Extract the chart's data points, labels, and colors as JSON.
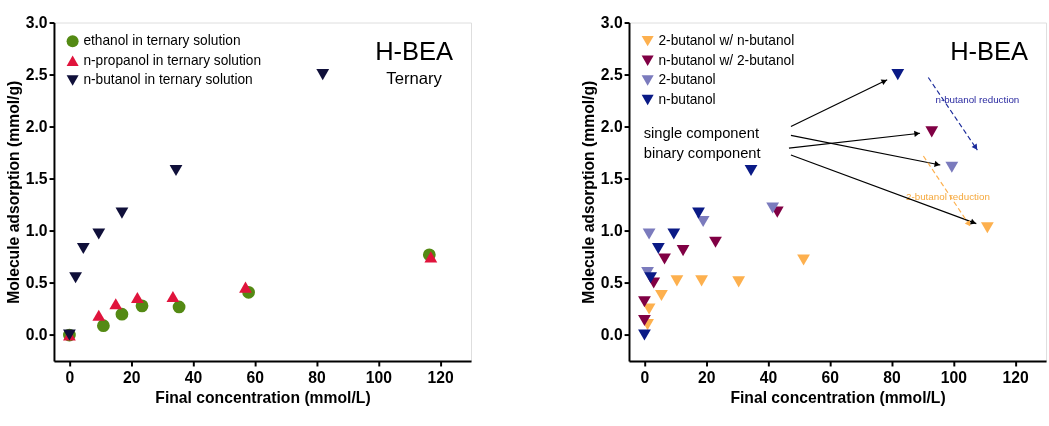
{
  "chart_data": [
    {
      "type": "scatter",
      "xlabel": "Final concentration (mmol/L)",
      "ylabel": "Molecule adsorption (mmol/g)",
      "xlim": [
        -5,
        130
      ],
      "xticks": [
        0,
        20,
        40,
        60,
        80,
        100,
        120
      ],
      "ylim": [
        -0.25,
        3.0
      ],
      "yticks": [
        {
          "value": 0,
          "label": "0.0"
        },
        0.5,
        {
          "value": 1,
          "label": "1.0"
        },
        1.5,
        {
          "value": 2,
          "label": "2.0"
        },
        2.5,
        {
          "value": 3,
          "label": "3.0"
        }
      ],
      "grid": false,
      "legend": "top left",
      "annotations": [
        "H-BEA",
        "Ternary"
      ],
      "series": [
        {
          "name": "ethanol in ternary solution",
          "color": "#548a14",
          "marker": "circle",
          "x": [
            0,
            11,
            17,
            23.5,
            35.5,
            58,
            116.5
          ],
          "values": [
            0,
            0.09,
            0.2,
            0.28,
            0.27,
            0.41,
            0.77
          ]
        },
        {
          "name": "n-propanol in ternary solution",
          "color": "#e0143c",
          "marker": "triangle",
          "x": [
            0,
            9.5,
            15,
            22,
            33.5,
            57,
            117
          ],
          "values": [
            0,
            0.19,
            0.3,
            0.36,
            0.37,
            0.46,
            0.75
          ]
        },
        {
          "name": "n-butanol in ternary solution",
          "color": "#10103a",
          "marker": "triangle-down",
          "x": [
            0,
            2,
            4.5,
            9.5,
            17,
            34.5,
            82
          ],
          "values": [
            0,
            0.55,
            0.83,
            0.97,
            1.17,
            1.58,
            2.5
          ]
        }
      ]
    },
    {
      "type": "scatter",
      "xlabel": "Final concentration (mmol/L)",
      "ylabel": "Molecule adsorption (mmol/g)",
      "xlim": [
        -5,
        130
      ],
      "xticks": [
        0,
        20,
        40,
        60,
        80,
        100,
        120
      ],
      "ylim": [
        -0.25,
        3.0
      ],
      "yticks": [
        {
          "value": 0,
          "label": "0.0"
        },
        0.5,
        {
          "value": 1,
          "label": "1.0"
        },
        1.5,
        {
          "value": 2,
          "label": "2.0"
        },
        2.5,
        {
          "value": 3,
          "label": "3.0"
        }
      ],
      "grid": false,
      "legend": "top left",
      "annotations": [
        "H-BEA",
        "single component",
        "binary component",
        "n-butanol reduction",
        "2-butanol reduction"
      ],
      "series": [
        {
          "name": "2-butanol w/ n-butanol",
          "color": "#fdb04e",
          "marker": "triangle-down",
          "x": [
            1,
            1.5,
            5.5,
            10.5,
            18.5,
            30.5,
            51.5,
            111
          ],
          "values": [
            0.1,
            0.25,
            0.38,
            0.52,
            0.52,
            0.51,
            0.72,
            1.03
          ]
        },
        {
          "name": "n-butanol w/ 2-butanol",
          "color": "#800044",
          "marker": "triangle-down",
          "x": [
            0,
            0,
            3,
            6.5,
            12.5,
            23,
            43,
            93
          ],
          "values": [
            0.14,
            0.32,
            0.5,
            0.73,
            0.81,
            0.89,
            1.18,
            1.95
          ]
        },
        {
          "name": "2-butanol",
          "color": "#7b7bbd",
          "marker": "triangle-down",
          "x": [
            1,
            1.5,
            19,
            41.5,
            99.5
          ],
          "values": [
            0.6,
            0.97,
            1.09,
            1.22,
            1.61
          ]
        },
        {
          "name": "n-butanol",
          "color": "#0a1a86",
          "marker": "triangle-down",
          "x": [
            0,
            2,
            4.5,
            9.5,
            17.5,
            34.5,
            82
          ],
          "values": [
            0,
            0.55,
            0.83,
            0.97,
            1.17,
            1.58,
            2.5
          ]
        }
      ]
    }
  ]
}
